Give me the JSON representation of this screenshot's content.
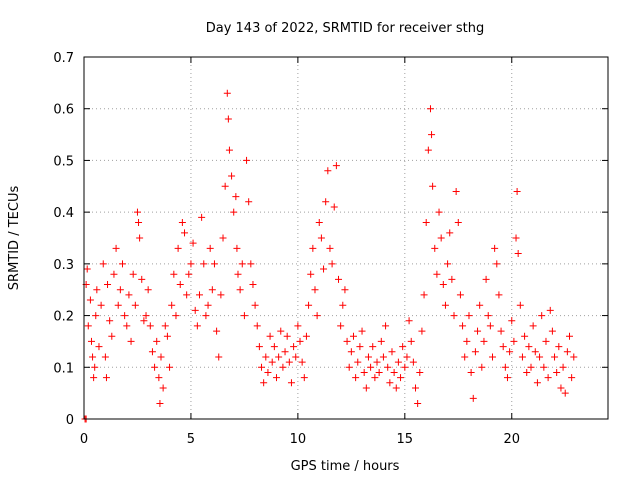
{
  "chart_data": {
    "type": "scatter",
    "title": "Day 143 of 2022, SRMTID for receiver sthg",
    "xlabel": "GPS time / hours",
    "ylabel": "SRMTID / TECUs",
    "xlim": [
      0,
      24.5
    ],
    "ylim": [
      0,
      0.7
    ],
    "xticks": [
      0,
      5,
      10,
      15,
      20
    ],
    "yticks": [
      0,
      0.1,
      0.2,
      0.3,
      0.4,
      0.5,
      0.6,
      0.7
    ],
    "xtick_labels": [
      "0",
      "5",
      "10",
      "15",
      "20"
    ],
    "ytick_labels": [
      "0",
      "0.1",
      "0.2",
      "0.3",
      "0.4",
      "0.5",
      "0.6",
      "0.7"
    ],
    "grid": true,
    "marker": "plus",
    "color": "#ff0000",
    "points": [
      [
        0.05,
        0.0
      ],
      [
        0.1,
        0.0
      ],
      [
        0.1,
        0.26
      ],
      [
        0.15,
        0.29
      ],
      [
        0.2,
        0.18
      ],
      [
        0.3,
        0.23
      ],
      [
        0.35,
        0.15
      ],
      [
        0.4,
        0.12
      ],
      [
        0.45,
        0.08
      ],
      [
        0.5,
        0.1
      ],
      [
        0.55,
        0.2
      ],
      [
        0.6,
        0.25
      ],
      [
        0.7,
        0.14
      ],
      [
        0.8,
        0.22
      ],
      [
        0.9,
        0.3
      ],
      [
        1.0,
        0.12
      ],
      [
        1.05,
        0.08
      ],
      [
        1.1,
        0.26
      ],
      [
        1.2,
        0.19
      ],
      [
        1.3,
        0.16
      ],
      [
        1.4,
        0.28
      ],
      [
        1.5,
        0.33
      ],
      [
        1.6,
        0.22
      ],
      [
        1.7,
        0.25
      ],
      [
        1.8,
        0.3
      ],
      [
        1.9,
        0.2
      ],
      [
        2.0,
        0.18
      ],
      [
        2.1,
        0.24
      ],
      [
        2.2,
        0.15
      ],
      [
        2.3,
        0.28
      ],
      [
        2.4,
        0.22
      ],
      [
        2.5,
        0.4
      ],
      [
        2.55,
        0.38
      ],
      [
        2.6,
        0.35
      ],
      [
        2.7,
        0.27
      ],
      [
        2.8,
        0.19
      ],
      [
        2.9,
        0.2
      ],
      [
        3.0,
        0.25
      ],
      [
        3.1,
        0.18
      ],
      [
        3.2,
        0.13
      ],
      [
        3.3,
        0.1
      ],
      [
        3.4,
        0.15
      ],
      [
        3.5,
        0.08
      ],
      [
        3.55,
        0.03
      ],
      [
        3.6,
        0.12
      ],
      [
        3.7,
        0.06
      ],
      [
        3.8,
        0.18
      ],
      [
        3.9,
        0.16
      ],
      [
        4.0,
        0.1
      ],
      [
        4.1,
        0.22
      ],
      [
        4.2,
        0.28
      ],
      [
        4.3,
        0.2
      ],
      [
        4.4,
        0.33
      ],
      [
        4.5,
        0.26
      ],
      [
        4.6,
        0.38
      ],
      [
        4.7,
        0.36
      ],
      [
        4.8,
        0.24
      ],
      [
        4.9,
        0.28
      ],
      [
        5.0,
        0.3
      ],
      [
        5.1,
        0.34
      ],
      [
        5.2,
        0.21
      ],
      [
        5.3,
        0.18
      ],
      [
        5.4,
        0.24
      ],
      [
        5.5,
        0.39
      ],
      [
        5.6,
        0.3
      ],
      [
        5.7,
        0.2
      ],
      [
        5.8,
        0.22
      ],
      [
        5.9,
        0.33
      ],
      [
        6.0,
        0.25
      ],
      [
        6.1,
        0.3
      ],
      [
        6.2,
        0.17
      ],
      [
        6.3,
        0.12
      ],
      [
        6.4,
        0.24
      ],
      [
        6.5,
        0.35
      ],
      [
        6.6,
        0.45
      ],
      [
        6.7,
        0.63
      ],
      [
        6.75,
        0.58
      ],
      [
        6.8,
        0.52
      ],
      [
        6.9,
        0.47
      ],
      [
        7.0,
        0.4
      ],
      [
        7.1,
        0.43
      ],
      [
        7.15,
        0.33
      ],
      [
        7.2,
        0.28
      ],
      [
        7.3,
        0.25
      ],
      [
        7.4,
        0.3
      ],
      [
        7.5,
        0.2
      ],
      [
        7.6,
        0.5
      ],
      [
        7.7,
        0.42
      ],
      [
        7.8,
        0.3
      ],
      [
        7.9,
        0.26
      ],
      [
        8.0,
        0.22
      ],
      [
        8.1,
        0.18
      ],
      [
        8.2,
        0.14
      ],
      [
        8.3,
        0.1
      ],
      [
        8.4,
        0.07
      ],
      [
        8.5,
        0.12
      ],
      [
        8.6,
        0.09
      ],
      [
        8.7,
        0.16
      ],
      [
        8.8,
        0.11
      ],
      [
        8.9,
        0.14
      ],
      [
        9.0,
        0.08
      ],
      [
        9.1,
        0.12
      ],
      [
        9.2,
        0.17
      ],
      [
        9.3,
        0.1
      ],
      [
        9.4,
        0.13
      ],
      [
        9.5,
        0.16
      ],
      [
        9.6,
        0.11
      ],
      [
        9.7,
        0.07
      ],
      [
        9.8,
        0.14
      ],
      [
        9.9,
        0.12
      ],
      [
        10.0,
        0.18
      ],
      [
        10.1,
        0.15
      ],
      [
        10.2,
        0.11
      ],
      [
        10.3,
        0.08
      ],
      [
        10.4,
        0.16
      ],
      [
        10.5,
        0.22
      ],
      [
        10.6,
        0.28
      ],
      [
        10.7,
        0.33
      ],
      [
        10.8,
        0.25
      ],
      [
        10.9,
        0.2
      ],
      [
        11.0,
        0.38
      ],
      [
        11.1,
        0.35
      ],
      [
        11.2,
        0.29
      ],
      [
        11.3,
        0.42
      ],
      [
        11.4,
        0.48
      ],
      [
        11.5,
        0.33
      ],
      [
        11.6,
        0.3
      ],
      [
        11.7,
        0.41
      ],
      [
        11.8,
        0.49
      ],
      [
        11.9,
        0.27
      ],
      [
        12.0,
        0.18
      ],
      [
        12.1,
        0.22
      ],
      [
        12.2,
        0.25
      ],
      [
        12.3,
        0.15
      ],
      [
        12.4,
        0.1
      ],
      [
        12.5,
        0.13
      ],
      [
        12.6,
        0.16
      ],
      [
        12.7,
        0.08
      ],
      [
        12.8,
        0.11
      ],
      [
        12.9,
        0.14
      ],
      [
        13.0,
        0.17
      ],
      [
        13.1,
        0.09
      ],
      [
        13.2,
        0.06
      ],
      [
        13.3,
        0.12
      ],
      [
        13.4,
        0.1
      ],
      [
        13.5,
        0.14
      ],
      [
        13.6,
        0.08
      ],
      [
        13.7,
        0.11
      ],
      [
        13.8,
        0.09
      ],
      [
        13.9,
        0.15
      ],
      [
        14.0,
        0.12
      ],
      [
        14.1,
        0.18
      ],
      [
        14.2,
        0.1
      ],
      [
        14.3,
        0.07
      ],
      [
        14.4,
        0.13
      ],
      [
        14.5,
        0.09
      ],
      [
        14.6,
        0.06
      ],
      [
        14.7,
        0.11
      ],
      [
        14.8,
        0.08
      ],
      [
        14.9,
        0.14
      ],
      [
        15.0,
        0.1
      ],
      [
        15.1,
        0.12
      ],
      [
        15.2,
        0.19
      ],
      [
        15.3,
        0.15
      ],
      [
        15.4,
        0.11
      ],
      [
        15.5,
        0.06
      ],
      [
        15.6,
        0.03
      ],
      [
        15.7,
        0.09
      ],
      [
        15.8,
        0.17
      ],
      [
        15.9,
        0.24
      ],
      [
        16.0,
        0.38
      ],
      [
        16.1,
        0.52
      ],
      [
        16.2,
        0.6
      ],
      [
        16.25,
        0.55
      ],
      [
        16.3,
        0.45
      ],
      [
        16.4,
        0.33
      ],
      [
        16.5,
        0.28
      ],
      [
        16.6,
        0.4
      ],
      [
        16.7,
        0.35
      ],
      [
        16.8,
        0.26
      ],
      [
        16.9,
        0.22
      ],
      [
        17.0,
        0.3
      ],
      [
        17.1,
        0.36
      ],
      [
        17.2,
        0.27
      ],
      [
        17.3,
        0.2
      ],
      [
        17.4,
        0.44
      ],
      [
        17.5,
        0.38
      ],
      [
        17.6,
        0.24
      ],
      [
        17.7,
        0.18
      ],
      [
        17.8,
        0.12
      ],
      [
        17.9,
        0.15
      ],
      [
        18.0,
        0.2
      ],
      [
        18.1,
        0.09
      ],
      [
        18.2,
        0.04
      ],
      [
        18.3,
        0.13
      ],
      [
        18.4,
        0.17
      ],
      [
        18.5,
        0.22
      ],
      [
        18.6,
        0.1
      ],
      [
        18.7,
        0.15
      ],
      [
        18.8,
        0.27
      ],
      [
        18.9,
        0.2
      ],
      [
        19.0,
        0.18
      ],
      [
        19.1,
        0.12
      ],
      [
        19.2,
        0.33
      ],
      [
        19.3,
        0.3
      ],
      [
        19.4,
        0.24
      ],
      [
        19.5,
        0.17
      ],
      [
        19.6,
        0.14
      ],
      [
        19.7,
        0.1
      ],
      [
        19.8,
        0.08
      ],
      [
        19.9,
        0.13
      ],
      [
        20.0,
        0.19
      ],
      [
        20.1,
        0.15
      ],
      [
        20.2,
        0.35
      ],
      [
        20.25,
        0.44
      ],
      [
        20.3,
        0.32
      ],
      [
        20.4,
        0.22
      ],
      [
        20.5,
        0.12
      ],
      [
        20.6,
        0.16
      ],
      [
        20.7,
        0.09
      ],
      [
        20.8,
        0.14
      ],
      [
        20.9,
        0.1
      ],
      [
        21.0,
        0.18
      ],
      [
        21.1,
        0.13
      ],
      [
        21.2,
        0.07
      ],
      [
        21.3,
        0.12
      ],
      [
        21.4,
        0.2
      ],
      [
        21.5,
        0.1
      ],
      [
        21.6,
        0.15
      ],
      [
        21.7,
        0.08
      ],
      [
        21.8,
        0.21
      ],
      [
        21.9,
        0.17
      ],
      [
        22.0,
        0.12
      ],
      [
        22.1,
        0.09
      ],
      [
        22.2,
        0.14
      ],
      [
        22.3,
        0.06
      ],
      [
        22.4,
        0.1
      ],
      [
        22.5,
        0.05
      ],
      [
        22.6,
        0.13
      ],
      [
        22.7,
        0.16
      ],
      [
        22.8,
        0.08
      ],
      [
        22.9,
        0.12
      ]
    ]
  }
}
